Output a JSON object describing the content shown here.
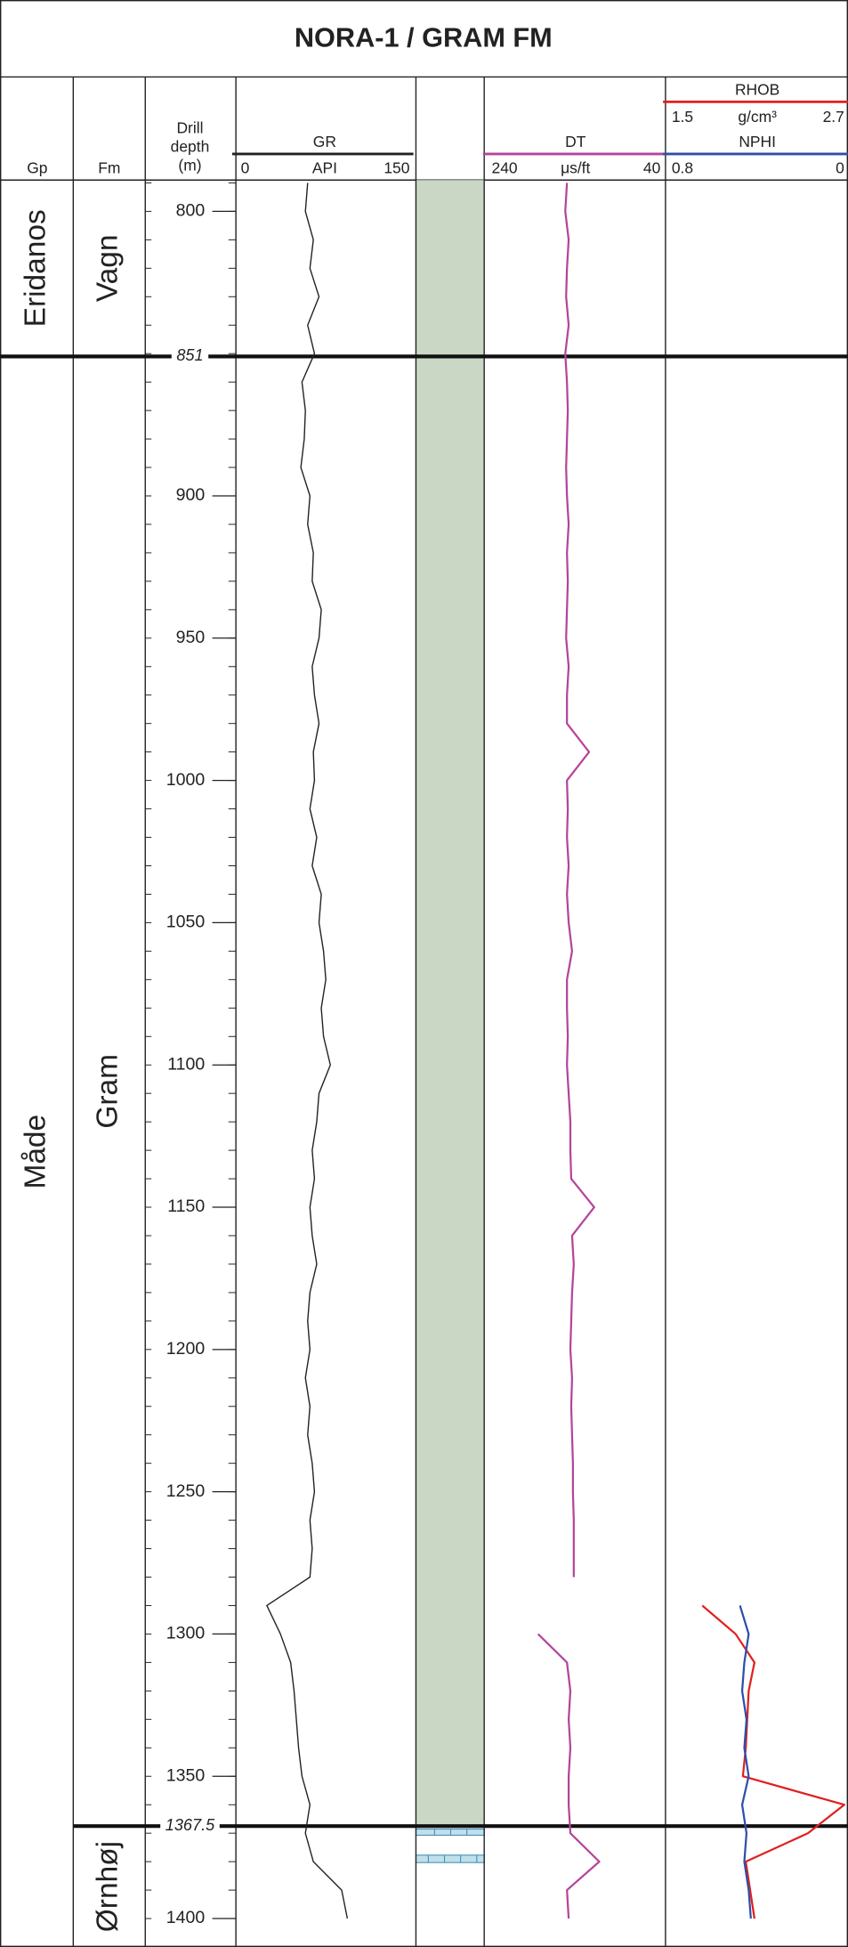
{
  "chart_data": {
    "type": "well_log",
    "title": "NORA-1 / GRAM FM",
    "columns": {
      "group": "Gp",
      "formation": "Fm",
      "depth": [
        "Drill",
        "depth",
        "(m)"
      ]
    },
    "ylim": [
      789,
      1410
    ],
    "yticks": [
      800,
      900,
      950,
      1000,
      1050,
      1100,
      1150,
      1200,
      1250,
      1300,
      1350,
      1400
    ],
    "minor_ticks": [
      790,
      800,
      810,
      820,
      830,
      840,
      850,
      860,
      870,
      880,
      890,
      900,
      910,
      920,
      930,
      940,
      950,
      960,
      970,
      980,
      990,
      1000,
      1010,
      1020,
      1030,
      1040,
      1050,
      1060,
      1070,
      1080,
      1090,
      1100,
      1110,
      1120,
      1130,
      1140,
      1150,
      1160,
      1170,
      1180,
      1190,
      1200,
      1210,
      1220,
      1230,
      1240,
      1250,
      1260,
      1270,
      1280,
      1290,
      1300,
      1310,
      1320,
      1330,
      1340,
      1350,
      1360,
      1370,
      1380,
      1390,
      1400
    ],
    "boundaries": [
      851,
      1367.5
    ],
    "groups": [
      {
        "name": "Eridanos"
      },
      {
        "name": "Måde"
      }
    ],
    "formations": [
      {
        "name": "Vagn"
      },
      {
        "name": "Gram"
      },
      {
        "name": "Ørnhøj"
      }
    ],
    "depths": [
      790,
      800,
      810,
      820,
      830,
      840,
      850,
      860,
      870,
      880,
      890,
      900,
      910,
      920,
      930,
      940,
      950,
      960,
      970,
      980,
      990,
      1000,
      1010,
      1020,
      1030,
      1040,
      1050,
      1060,
      1070,
      1080,
      1090,
      1100,
      1110,
      1120,
      1130,
      1140,
      1150,
      1160,
      1170,
      1180,
      1190,
      1200,
      1210,
      1220,
      1230,
      1240,
      1250,
      1260,
      1270,
      1280,
      1290,
      1300,
      1310,
      1320,
      1330,
      1340,
      1350,
      1360,
      1370,
      1380,
      1390,
      1400
    ],
    "series": [
      {
        "name": "GR",
        "unit": "API",
        "color": "#222222",
        "xlim": [
          0,
          150
        ],
        "values": [
          60,
          58,
          65,
          62,
          70,
          60,
          66,
          55,
          58,
          57,
          54,
          62,
          60,
          65,
          64,
          72,
          70,
          64,
          66,
          70,
          65,
          66,
          62,
          68,
          64,
          72,
          70,
          74,
          76,
          72,
          74,
          80,
          70,
          68,
          64,
          66,
          62,
          64,
          68,
          62,
          60,
          62,
          58,
          62,
          60,
          64,
          66,
          62,
          64,
          62,
          24,
          36,
          45,
          48,
          50,
          52,
          55,
          62,
          58,
          65,
          90,
          95
        ]
      },
      {
        "name": "DT",
        "unit": "μs/ft",
        "color": "#b5449b",
        "xlim": [
          240,
          40
        ],
        "values": [
          150,
          152,
          148,
          150,
          151,
          148,
          152,
          150,
          149,
          150,
          151,
          150,
          148,
          150,
          149,
          150,
          151,
          148,
          150,
          150,
          124,
          150,
          149,
          150,
          148,
          150,
          148,
          144,
          150,
          150,
          149,
          150,
          148,
          146,
          146,
          145,
          118,
          144,
          142,
          144,
          145,
          146,
          144,
          145,
          144,
          143,
          143,
          142,
          142,
          142,
          null,
          184,
          150,
          146,
          148,
          146,
          148,
          148,
          146,
          112,
          150,
          148
        ]
      },
      {
        "name": "RHOB",
        "unit": "g/cm³",
        "color": "#e02020",
        "xlim": [
          1.5,
          2.7
        ],
        "values": [
          null,
          null,
          null,
          null,
          null,
          null,
          null,
          null,
          null,
          null,
          null,
          null,
          null,
          null,
          null,
          null,
          null,
          null,
          null,
          null,
          null,
          null,
          null,
          null,
          null,
          null,
          null,
          null,
          null,
          null,
          null,
          null,
          null,
          null,
          null,
          null,
          null,
          null,
          null,
          null,
          null,
          null,
          null,
          null,
          null,
          null,
          null,
          null,
          null,
          null,
          1.72,
          1.95,
          2.08,
          2.04,
          2.03,
          2.02,
          2.0,
          2.7,
          2.45,
          2.02,
          2.05,
          2.08
        ]
      },
      {
        "name": "NPHI",
        "color": "#2d4fa8",
        "xlim": [
          0.8,
          0
        ],
        "values": [
          null,
          null,
          null,
          null,
          null,
          null,
          null,
          null,
          null,
          null,
          null,
          null,
          null,
          null,
          null,
          null,
          null,
          null,
          null,
          null,
          null,
          null,
          null,
          null,
          null,
          null,
          null,
          null,
          null,
          null,
          null,
          null,
          null,
          null,
          null,
          null,
          null,
          null,
          null,
          null,
          null,
          null,
          null,
          null,
          null,
          null,
          null,
          null,
          null,
          null,
          0.48,
          0.44,
          0.46,
          0.47,
          0.45,
          0.46,
          0.44,
          0.47,
          0.45,
          0.46,
          0.44,
          0.43
        ]
      }
    ]
  }
}
